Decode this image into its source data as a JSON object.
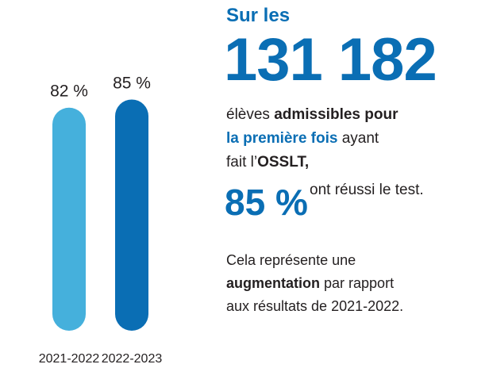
{
  "chart_data": {
    "type": "bar",
    "categories": [
      "2021-2022",
      "2022-2023"
    ],
    "values": [
      82,
      85
    ],
    "value_labels": [
      "82 %",
      "85 %"
    ],
    "colors": [
      "#45b0dc",
      "#0a6eb4"
    ]
  },
  "text": {
    "intro": "Sur les",
    "count": "131 182",
    "sentence": [
      "élèves ",
      "admissibles pour",
      "la première fois",
      " ayant",
      "fait l’",
      "OSSLT,"
    ],
    "highlight": "85 %",
    "result": "ont réussi le test.",
    "note": [
      "Cela représente une",
      "augmentation",
      " par rapport",
      "aux résultats de 2021-2022."
    ]
  }
}
